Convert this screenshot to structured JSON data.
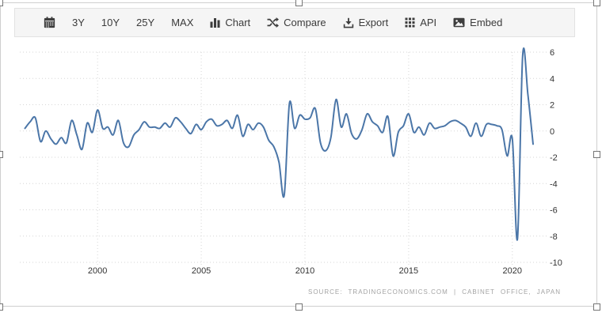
{
  "toolbar": {
    "items": [
      {
        "id": "calendar",
        "label": "",
        "icon": "calendar-icon"
      },
      {
        "id": "3y",
        "label": "3Y"
      },
      {
        "id": "10y",
        "label": "10Y"
      },
      {
        "id": "25y",
        "label": "25Y"
      },
      {
        "id": "max",
        "label": "MAX"
      },
      {
        "id": "chart",
        "label": "Chart",
        "icon": "bar-chart-icon"
      },
      {
        "id": "compare",
        "label": "Compare",
        "icon": "shuffle-icon"
      },
      {
        "id": "export",
        "label": "Export",
        "icon": "download-icon"
      },
      {
        "id": "api",
        "label": "API",
        "icon": "grid-icon"
      },
      {
        "id": "embed",
        "label": "Embed",
        "icon": "image-icon"
      }
    ]
  },
  "chart": {
    "source": "SOURCE: TRADINGECONOMICS.COM | CABINET OFFICE, JAPAN"
  },
  "colors": {
    "line": "#4b76a8",
    "grid": "#d6d6d6",
    "tick_text": "#333333",
    "toolbar_bg": "#f5f5f5",
    "source_text": "#a3a3a3"
  },
  "chart_data": {
    "type": "line",
    "title": "",
    "xlabel": "",
    "ylabel": "",
    "x_unit": "decimal_year_quarterly",
    "x_start": 1996.5,
    "x_step": 0.25,
    "values": [
      0.2,
      0.7,
      1.0,
      -0.8,
      0.0,
      -0.6,
      -1.0,
      -0.5,
      -0.9,
      0.8,
      -0.3,
      -1.4,
      0.6,
      -0.1,
      1.6,
      0.2,
      0.3,
      -0.3,
      0.8,
      -0.9,
      -1.2,
      -0.3,
      0.1,
      0.7,
      0.3,
      0.3,
      0.2,
      0.6,
      0.3,
      1.0,
      0.7,
      0.2,
      -0.2,
      0.5,
      0.1,
      0.7,
      0.9,
      0.4,
      0.5,
      0.8,
      0.2,
      1.2,
      -0.4,
      0.5,
      0.1,
      0.6,
      0.3,
      -0.7,
      -1.2,
      -2.4,
      -4.9,
      2.1,
      0.2,
      1.2,
      0.9,
      1.0,
      1.7,
      -0.9,
      -1.5,
      -0.5,
      2.4,
      0.3,
      1.3,
      -0.2,
      -0.6,
      0.1,
      1.3,
      0.7,
      0.4,
      -0.1,
      1.1,
      -1.9,
      -0.1,
      0.4,
      1.3,
      -0.1,
      0.3,
      -0.3,
      0.6,
      0.2,
      0.3,
      0.4,
      0.7,
      0.8,
      0.6,
      0.3,
      -0.4,
      0.6,
      -0.4,
      0.5,
      0.5,
      0.4,
      0.1,
      -1.9,
      -0.6,
      -8.2,
      5.8,
      2.8,
      -1.0
    ],
    "x_ticks": [
      2000,
      2005,
      2010,
      2015,
      2020
    ],
    "y_ticks": [
      6,
      4,
      2,
      0,
      -2,
      -4,
      -6,
      -8,
      -10
    ],
    "xlim": [
      1996.25,
      2021.65
    ],
    "ylim": [
      -10,
      6
    ],
    "grid": "dotted",
    "legend": "none",
    "y_axis_side": "right"
  }
}
